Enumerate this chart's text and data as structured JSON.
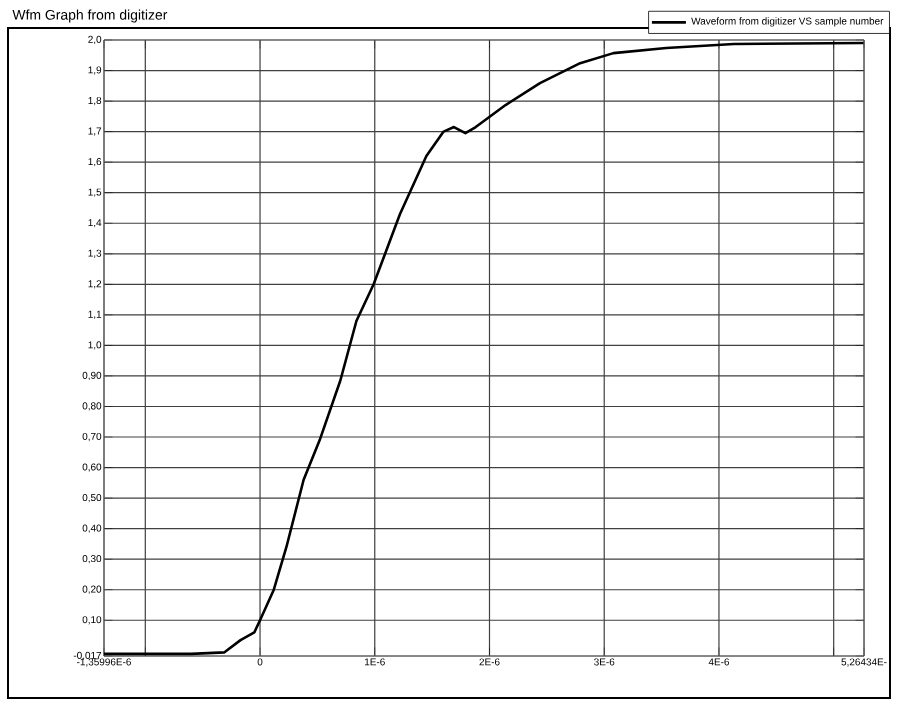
{
  "chart_data": {
    "type": "line",
    "title": "Wfm Graph from digitizer",
    "xlim": [
      -1.35996e-06,
      5.26434e-06
    ],
    "xticks": [
      {
        "value": -1.35996e-06,
        "label": "-1,35996E-6"
      },
      {
        "value": -1e-06,
        "label": null
      },
      {
        "value": 0,
        "label": "0"
      },
      {
        "value": 1e-06,
        "label": "1E-6"
      },
      {
        "value": 2e-06,
        "label": "2E-6"
      },
      {
        "value": 3e-06,
        "label": "3E-6"
      },
      {
        "value": 4e-06,
        "label": "4E-6"
      },
      {
        "value": 5e-06,
        "label": null
      },
      {
        "value": 5.26434e-06,
        "label": "5,26434E-"
      }
    ],
    "ylim": [
      -0.017,
      2.0
    ],
    "yticks": [
      {
        "value": -0.017,
        "label": "-0,017"
      },
      {
        "value": 0.1,
        "label": "0,10"
      },
      {
        "value": 0.2,
        "label": "0,20"
      },
      {
        "value": 0.3,
        "label": "0,30"
      },
      {
        "value": 0.4,
        "label": "0,40"
      },
      {
        "value": 0.5,
        "label": "0,50"
      },
      {
        "value": 0.6,
        "label": "0,60"
      },
      {
        "value": 0.7,
        "label": "0,70"
      },
      {
        "value": 0.8,
        "label": "0,80"
      },
      {
        "value": 0.9,
        "label": "0,90"
      },
      {
        "value": 1.0,
        "label": "1,0"
      },
      {
        "value": 1.1,
        "label": "1,1"
      },
      {
        "value": 1.2,
        "label": "1,2"
      },
      {
        "value": 1.3,
        "label": "1,3"
      },
      {
        "value": 1.4,
        "label": "1,4"
      },
      {
        "value": 1.5,
        "label": "1,5"
      },
      {
        "value": 1.6,
        "label": "1,6"
      },
      {
        "value": 1.7,
        "label": "1,7"
      },
      {
        "value": 1.8,
        "label": "1,8"
      },
      {
        "value": 1.9,
        "label": "1,9"
      },
      {
        "value": 2.0,
        "label": "2,0"
      }
    ],
    "grid": true,
    "legend": "top right",
    "series": [
      {
        "name": "Waveform from digitizer VS sample number",
        "color": "#000000",
        "x": [
          -1.35996e-06,
          -6e-07,
          -3.1e-07,
          -1.7e-07,
          -5e-08,
          0,
          1.2e-07,
          2.3e-07,
          3.8e-07,
          5.2e-07,
          7e-07,
          8.4e-07,
          9.9e-07,
          1.13e-06,
          1.22e-06,
          1.45e-06,
          1.6e-06,
          1.69e-06,
          1.79e-06,
          1.88e-06,
          2.14e-06,
          2.44e-06,
          2.79e-06,
          3.08e-06,
          3.54e-06,
          4.13e-06,
          5.26e-06
        ],
        "values": [
          -0.01,
          -0.01,
          -0.005,
          0.035,
          0.06,
          0.1,
          0.2,
          0.34,
          0.56,
          0.69,
          0.885,
          1.08,
          1.2,
          1.34,
          1.43,
          1.62,
          1.7,
          1.715,
          1.695,
          1.715,
          1.787,
          1.859,
          1.924,
          1.957,
          1.974,
          1.987,
          1.99
        ]
      }
    ]
  }
}
